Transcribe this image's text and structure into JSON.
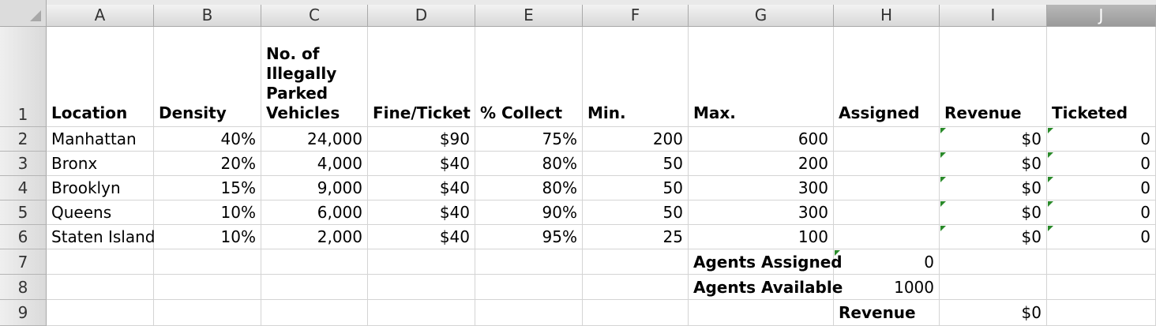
{
  "columns": [
    "A",
    "B",
    "C",
    "D",
    "E",
    "F",
    "G",
    "H",
    "I",
    "J"
  ],
  "rows": [
    "1",
    "2",
    "3",
    "4",
    "5",
    "6",
    "7",
    "8",
    "9"
  ],
  "headers": {
    "A": "Location",
    "B": "Density",
    "C": "No. of Illegally Parked Vehicles",
    "D": "Fine/Ticket",
    "E": "% Collect",
    "F": "Min.",
    "G": "Max.",
    "H": "Assigned",
    "I": "Revenue",
    "J": "Ticketed"
  },
  "data_rows": [
    {
      "location": "Manhattan",
      "density": "40%",
      "vehicles": "24,000",
      "fine": "$90",
      "collect": "75%",
      "min": "200",
      "max": "600",
      "assigned": "",
      "revenue": "$0",
      "ticketed": "0"
    },
    {
      "location": "Bronx",
      "density": "20%",
      "vehicles": "4,000",
      "fine": "$40",
      "collect": "80%",
      "min": "50",
      "max": "200",
      "assigned": "",
      "revenue": "$0",
      "ticketed": "0"
    },
    {
      "location": "Brooklyn",
      "density": "15%",
      "vehicles": "9,000",
      "fine": "$40",
      "collect": "80%",
      "min": "50",
      "max": "300",
      "assigned": "",
      "revenue": "$0",
      "ticketed": "0"
    },
    {
      "location": "Queens",
      "density": "10%",
      "vehicles": "6,000",
      "fine": "$40",
      "collect": "90%",
      "min": "50",
      "max": "300",
      "assigned": "",
      "revenue": "$0",
      "ticketed": "0"
    },
    {
      "location": "Staten Island",
      "density": "10%",
      "vehicles": "2,000",
      "fine": "$40",
      "collect": "95%",
      "min": "25",
      "max": "100",
      "assigned": "",
      "revenue": "$0",
      "ticketed": "0"
    }
  ],
  "summary": {
    "agents_assigned_label": "Agents Assigned",
    "agents_assigned_value": "0",
    "agents_available_label": "Agents Available",
    "agents_available_value": "1000",
    "revenue_label": "Revenue",
    "revenue_value": "$0"
  },
  "colors": {
    "formula_marker": "#2a8a2a",
    "selected_column": "#9a9a9a"
  }
}
